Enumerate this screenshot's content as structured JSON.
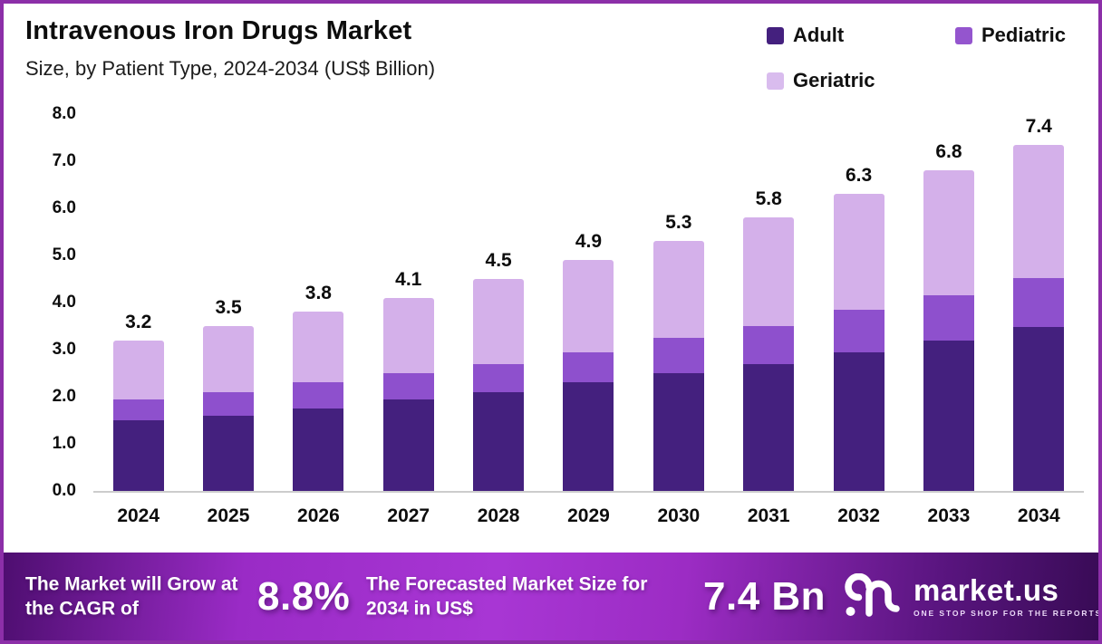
{
  "frame": {
    "border_color": "#8c2fa8"
  },
  "header": {
    "title": "Intravenous Iron Drugs Market",
    "subtitle": "Size, by Patient Type, 2024-2034 (US$ Billion)"
  },
  "legend": [
    {
      "label": "Adult",
      "color": "#44207e"
    },
    {
      "label": "Pediatric",
      "color": "#9455ce"
    },
    {
      "label": "Geriatric",
      "color": "#d9bcee"
    }
  ],
  "chart_data": {
    "type": "bar",
    "stacked": true,
    "title": "Intravenous Iron Drugs Market Size, by Patient Type, 2024-2034 (US$ Billion)",
    "categories": [
      "2024",
      "2025",
      "2026",
      "2027",
      "2028",
      "2029",
      "2030",
      "2031",
      "2032",
      "2033",
      "2034"
    ],
    "series": [
      {
        "name": "Adult",
        "color": "#44207e",
        "values": [
          1.5,
          1.6,
          1.75,
          1.95,
          2.1,
          2.3,
          2.5,
          2.7,
          2.95,
          3.2,
          3.5
        ]
      },
      {
        "name": "Pediatric",
        "color": "#8e50cd",
        "values": [
          0.45,
          0.5,
          0.55,
          0.55,
          0.6,
          0.65,
          0.75,
          0.8,
          0.9,
          0.95,
          1.05
        ]
      },
      {
        "name": "Geriatric",
        "color": "#d4b0ea",
        "values": [
          1.25,
          1.4,
          1.5,
          1.6,
          1.8,
          1.95,
          2.05,
          2.3,
          2.45,
          2.65,
          2.85
        ]
      }
    ],
    "totals": [
      "3.2",
      "3.5",
      "3.8",
      "4.1",
      "4.5",
      "4.9",
      "5.3",
      "5.8",
      "6.3",
      "6.8",
      "7.4"
    ],
    "xlabel": "",
    "ylabel": "",
    "ylim": [
      0,
      8
    ],
    "ytick_step": 1,
    "ytick_labels": [
      "0.0",
      "1.0",
      "2.0",
      "3.0",
      "4.0",
      "5.0",
      "6.0",
      "7.0",
      "8.0"
    ],
    "grid": false,
    "legend_position": "top-right"
  },
  "banner": {
    "stats": [
      {
        "label": "The Market will Grow at the CAGR of",
        "value": "8.8%"
      },
      {
        "label": "The Forecasted Market Size for 2034 in US$",
        "value": "7.4 Bn"
      }
    ],
    "logo": {
      "name": "market.us",
      "tagline": "ONE STOP SHOP FOR THE REPORTS"
    }
  }
}
